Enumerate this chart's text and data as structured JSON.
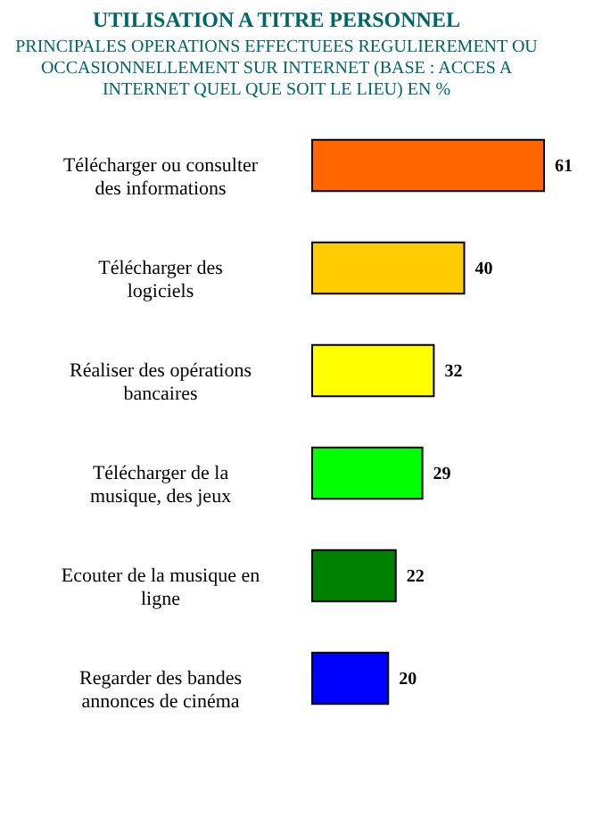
{
  "chart_data": {
    "type": "bar",
    "orientation": "horizontal",
    "title": "UTILISATION A TITRE PERSONNEL",
    "subtitle": "PRINCIPALES OPERATIONS EFFECTUEES REGULIEREMENT OU OCCASIONNELLEMENT SUR INTERNET (BASE : ACCES A INTERNET QUEL QUE SOIT LE LIEU) EN %",
    "categories": [
      "Télécharger ou consulter des informations",
      "Télécharger des logiciels",
      "Réaliser des opérations bancaires",
      "Télécharger de la musique, des jeux",
      "Ecouter de la musique en ligne",
      "Regarder des bandes annonces de cinéma"
    ],
    "values": [
      61,
      40,
      32,
      29,
      22,
      20
    ],
    "colors": [
      "#ff6600",
      "#ffcc00",
      "#ffff00",
      "#00ff00",
      "#008000",
      "#0000ff"
    ],
    "data_labels": true
  }
}
